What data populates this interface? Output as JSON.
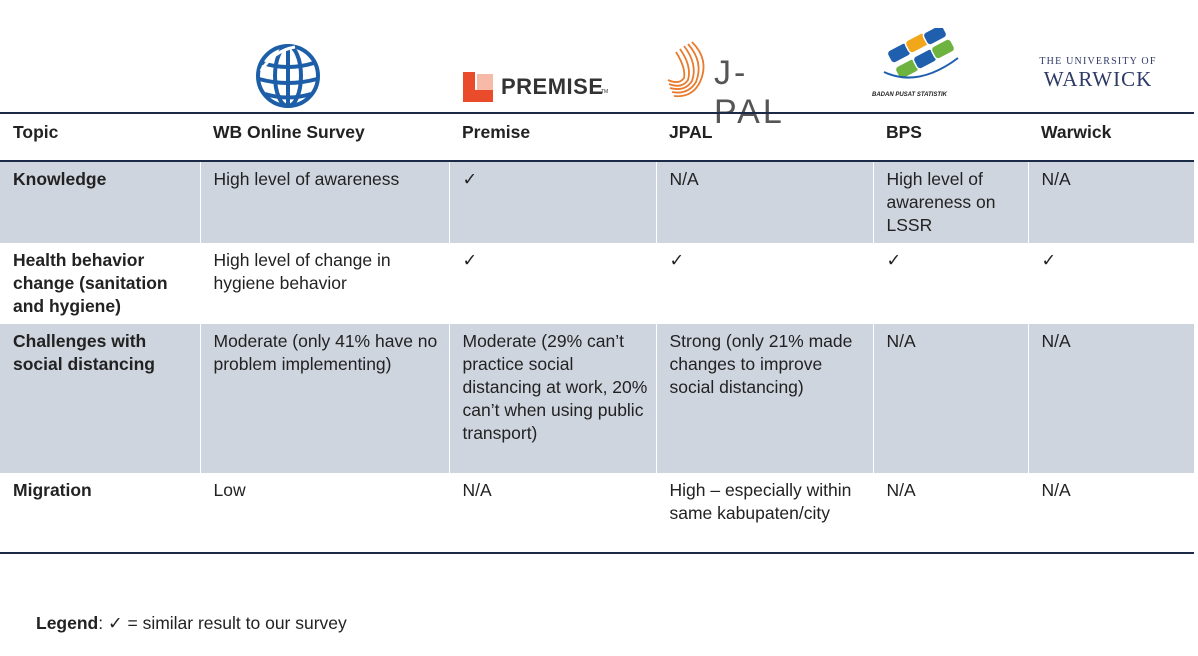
{
  "logos": {
    "premise_text": "PREMISE",
    "premise_tm": "TM",
    "jpal_text": "J-PAL",
    "bps_caption": "BADAN PUSAT STATISTIK",
    "warwick_line1": "THE UNIVERSITY OF",
    "warwick_line2": "WARWICK"
  },
  "table": {
    "headers": [
      "Topic",
      "WB Online Survey",
      "Premise",
      "JPAL",
      "BPS",
      "Warwick"
    ],
    "rows": [
      {
        "topic": "Knowledge",
        "cells": [
          "High level of awareness",
          "✓",
          "N/A",
          "High level of awareness on LSSR",
          "N/A"
        ]
      },
      {
        "topic": "Health behavior change (sanitation and hygiene)",
        "cells": [
          "High level of change in hygiene behavior",
          "✓",
          "✓",
          "✓",
          "✓"
        ]
      },
      {
        "topic": "Challenges with social distancing",
        "cells": [
          "Moderate (only 41% have no problem implementing)",
          "Moderate (29% can’t practice social distancing at work, 20% can’t when using public transport)",
          "Strong (only 21% made changes to improve social distancing)",
          "N/A",
          "N/A"
        ]
      },
      {
        "topic": "Migration",
        "cells": [
          "Low",
          "N/A",
          "High – especially within same kabupaten/city",
          "N/A",
          "N/A"
        ]
      }
    ]
  },
  "legend": {
    "label": "Legend",
    "text": ": ✓ = similar result to our survey"
  },
  "colors": {
    "shaded_row": "#cfd5df",
    "rule": "#1b2a47",
    "wb_blue": "#1d5ea8",
    "premise_red": "#ea4b2b",
    "jpal_orange": "#e97b2e",
    "warwick_navy": "#2e3a66"
  }
}
